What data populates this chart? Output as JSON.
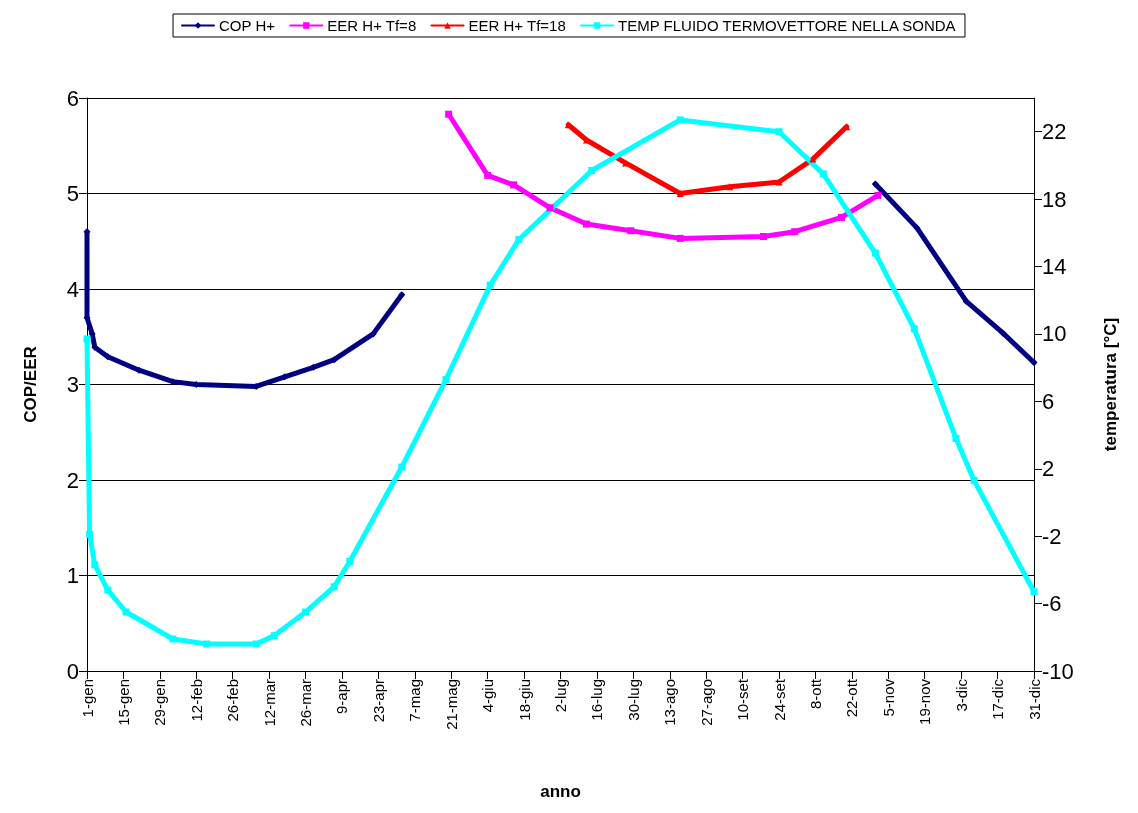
{
  "chart_data": {
    "type": "line",
    "xlabel": "anno",
    "ylabel": "COP/EER",
    "y2label": "temperatura [°C]",
    "xlim": [
      "--01-01",
      "--12-31"
    ],
    "xticks": [
      {
        "value": "--01-01",
        "label": "1-gen"
      },
      {
        "value": "--01-15",
        "label": "15-gen"
      },
      {
        "value": "--01-29",
        "label": "29-gen"
      },
      {
        "value": "--02-12",
        "label": "12-feb"
      },
      {
        "value": "--02-26",
        "label": "26-feb"
      },
      {
        "value": "--03-12",
        "label": "12-mar"
      },
      {
        "value": "--03-26",
        "label": "26-mar"
      },
      {
        "value": "--04-09",
        "label": "9-apr"
      },
      {
        "value": "--04-23",
        "label": "23-apr"
      },
      {
        "value": "--05-07",
        "label": "7-mag"
      },
      {
        "value": "--05-21",
        "label": "21-mag"
      },
      {
        "value": "--06-04",
        "label": "4-giu"
      },
      {
        "value": "--06-18",
        "label": "18-giu"
      },
      {
        "value": "--07-02",
        "label": "2-lug"
      },
      {
        "value": "--07-16",
        "label": "16-lug"
      },
      {
        "value": "--07-30",
        "label": "30-lug"
      },
      {
        "value": "--08-13",
        "label": "13-ago"
      },
      {
        "value": "--08-27",
        "label": "27-ago"
      },
      {
        "value": "--09-10",
        "label": "10-set"
      },
      {
        "value": "--09-24",
        "label": "24-set"
      },
      {
        "value": "--10-08",
        "label": "8-ott"
      },
      {
        "value": "--10-22",
        "label": "22-ott"
      },
      {
        "value": "--11-05",
        "label": "5-nov"
      },
      {
        "value": "--11-19",
        "label": "19-nov"
      },
      {
        "value": "--12-03",
        "label": "3-dic"
      },
      {
        "value": "--12-17",
        "label": "17-dic"
      },
      {
        "value": "--12-31",
        "label": "31-dic"
      }
    ],
    "ylim": [
      0,
      6
    ],
    "yticks": [
      0,
      1,
      2,
      3,
      4,
      5,
      6
    ],
    "y2lim": [
      -10,
      24
    ],
    "y2ticks": [
      -10,
      -6,
      -2,
      2,
      6,
      10,
      14,
      18,
      22
    ],
    "grid": "y",
    "legend": "top",
    "series": [
      {
        "name": "COP H+",
        "color": "#000080",
        "marker": "diamond",
        "x": [
          "--01-01",
          "--01-01",
          "--01-03",
          "--01-04",
          "--01-09",
          "--01-21",
          "--02-03",
          "--02-12",
          "--03-07",
          "--03-18",
          "--03-29",
          "--04-06",
          "--04-21",
          "--05-02",
          null,
          "--10-31",
          "--11-16",
          "--12-05",
          "--12-19",
          "--12-31"
        ],
        "values": [
          4.6,
          3.7,
          3.53,
          3.39,
          3.29,
          3.15,
          3.03,
          3.0,
          2.98,
          3.08,
          3.18,
          3.26,
          3.53,
          3.94,
          null,
          5.1,
          4.64,
          3.87,
          3.54,
          3.23
        ]
      },
      {
        "name": "EER H+ Tf=8",
        "color": "#ff00ff",
        "marker": "square",
        "x": [
          "--05-20",
          "--06-04",
          "--06-14",
          "--06-28",
          "--07-12",
          "--07-29",
          "--08-17",
          "--09-18",
          "--09-30",
          "--10-18",
          "--11-01"
        ],
        "values": [
          5.83,
          5.19,
          5.09,
          4.85,
          4.68,
          4.61,
          4.53,
          4.55,
          4.6,
          4.75,
          4.98
        ]
      },
      {
        "name": "EER H+ Tf=18",
        "color": "#ff0000",
        "marker": "triangle",
        "x": [
          "--07-05",
          "--07-12",
          "--07-27",
          "--08-17",
          "--09-05",
          "--09-24",
          "--10-07",
          "--10-20"
        ],
        "values": [
          5.72,
          5.56,
          5.32,
          5.0,
          5.07,
          5.12,
          5.36,
          5.7
        ]
      },
      {
        "name": "TEMP FLUIDO TERMOVETTORE NELLA SONDA",
        "color": "#00ffff",
        "marker": "square",
        "axis": "y2",
        "x": [
          "--01-01",
          "--01-02",
          "--01-04",
          "--01-09",
          "--01-16",
          "--02-03",
          "--02-16",
          "--03-07",
          "--03-14",
          "--03-26",
          "--04-06",
          "--04-12",
          "--05-02",
          "--05-19",
          "--06-05",
          "--06-16",
          "--07-14",
          "--08-17",
          "--09-24",
          "--10-11",
          "--10-31",
          "--11-15",
          "--12-01",
          "--12-08",
          "--12-31"
        ],
        "values": [
          9.7,
          -1.9,
          -3.7,
          -5.2,
          -6.5,
          -8.1,
          -8.4,
          -8.4,
          -7.9,
          -6.5,
          -5.0,
          -3.5,
          2.1,
          7.3,
          12.9,
          15.6,
          19.7,
          22.7,
          22.0,
          19.5,
          14.8,
          10.3,
          3.8,
          1.3,
          -5.3
        ]
      }
    ]
  }
}
